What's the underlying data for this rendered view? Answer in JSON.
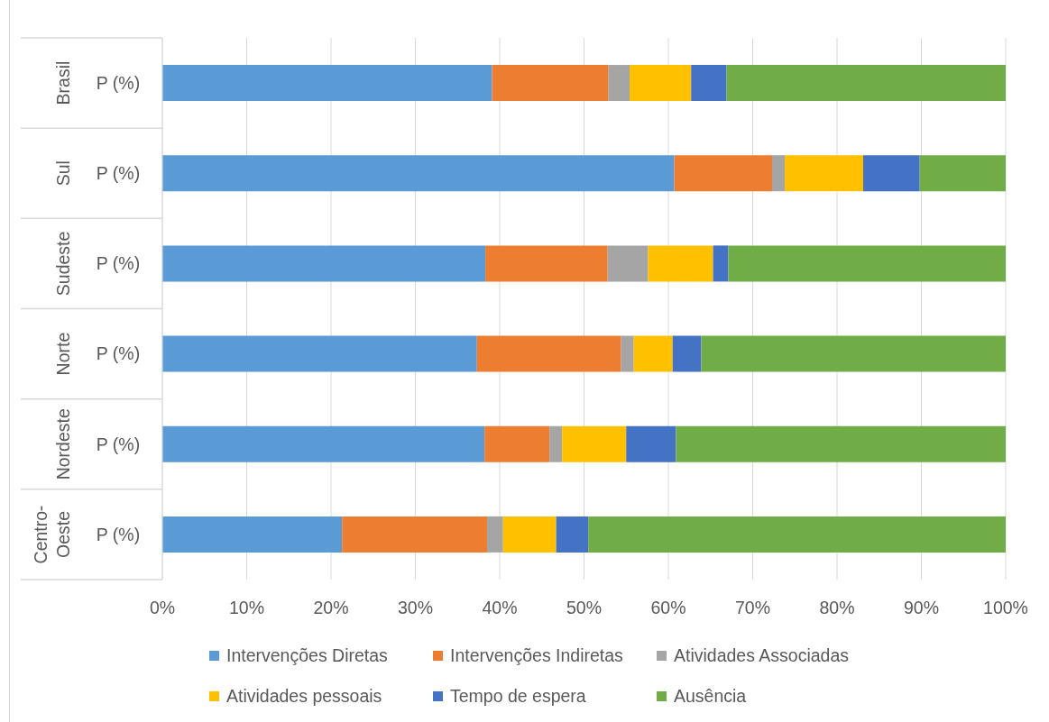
{
  "chart_data": {
    "type": "bar",
    "orientation": "horizontal",
    "stacked": true,
    "categories": [
      "Brasil",
      "Sul",
      "Sudeste",
      "Norte",
      "Nordeste",
      "Centro-Oeste"
    ],
    "series": [
      {
        "name": "Intervenções Diretas",
        "color": "#5b9bd5",
        "values": [
          39.1,
          60.7,
          38.3,
          37.3,
          38.2,
          21.3
        ]
      },
      {
        "name": "Intervenções Indiretas",
        "color": "#ed7d31",
        "values": [
          13.8,
          11.6,
          14.5,
          17.1,
          7.7,
          17.2
        ]
      },
      {
        "name": "Atividades Associadas",
        "color": "#a5a5a5",
        "values": [
          2.5,
          1.5,
          4.8,
          1.5,
          1.5,
          1.9
        ]
      },
      {
        "name": "Atividades pessoais",
        "color": "#ffc000",
        "values": [
          7.3,
          9.3,
          7.7,
          4.6,
          7.6,
          6.3
        ]
      },
      {
        "name": "Tempo de espera",
        "color": "#4472c4",
        "values": [
          4.2,
          6.7,
          1.8,
          3.4,
          5.9,
          3.8
        ]
      },
      {
        "name": "Ausência",
        "color": "#70ad47",
        "values": [
          33.1,
          10.2,
          32.9,
          36.1,
          39.1,
          49.5
        ]
      }
    ],
    "xlim": [
      0,
      100
    ],
    "xticks": [
      {
        "value": 0,
        "label": "0%"
      },
      {
        "value": 10,
        "label": "10%"
      },
      {
        "value": 20,
        "label": "20%"
      },
      {
        "value": 30,
        "label": "30%"
      },
      {
        "value": 40,
        "label": "40%"
      },
      {
        "value": 50,
        "label": "50%"
      },
      {
        "value": 60,
        "label": "60%"
      },
      {
        "value": 70,
        "label": "70%"
      },
      {
        "value": 80,
        "label": "80%"
      },
      {
        "value": 90,
        "label": "90%"
      },
      {
        "value": 100,
        "label": "100%"
      }
    ],
    "grid": "x",
    "legend": "bottom",
    "annotations": [
      "P (%)",
      "P (%)",
      "P (%)",
      "P (%)",
      "P (%)",
      "P (%)"
    ]
  }
}
